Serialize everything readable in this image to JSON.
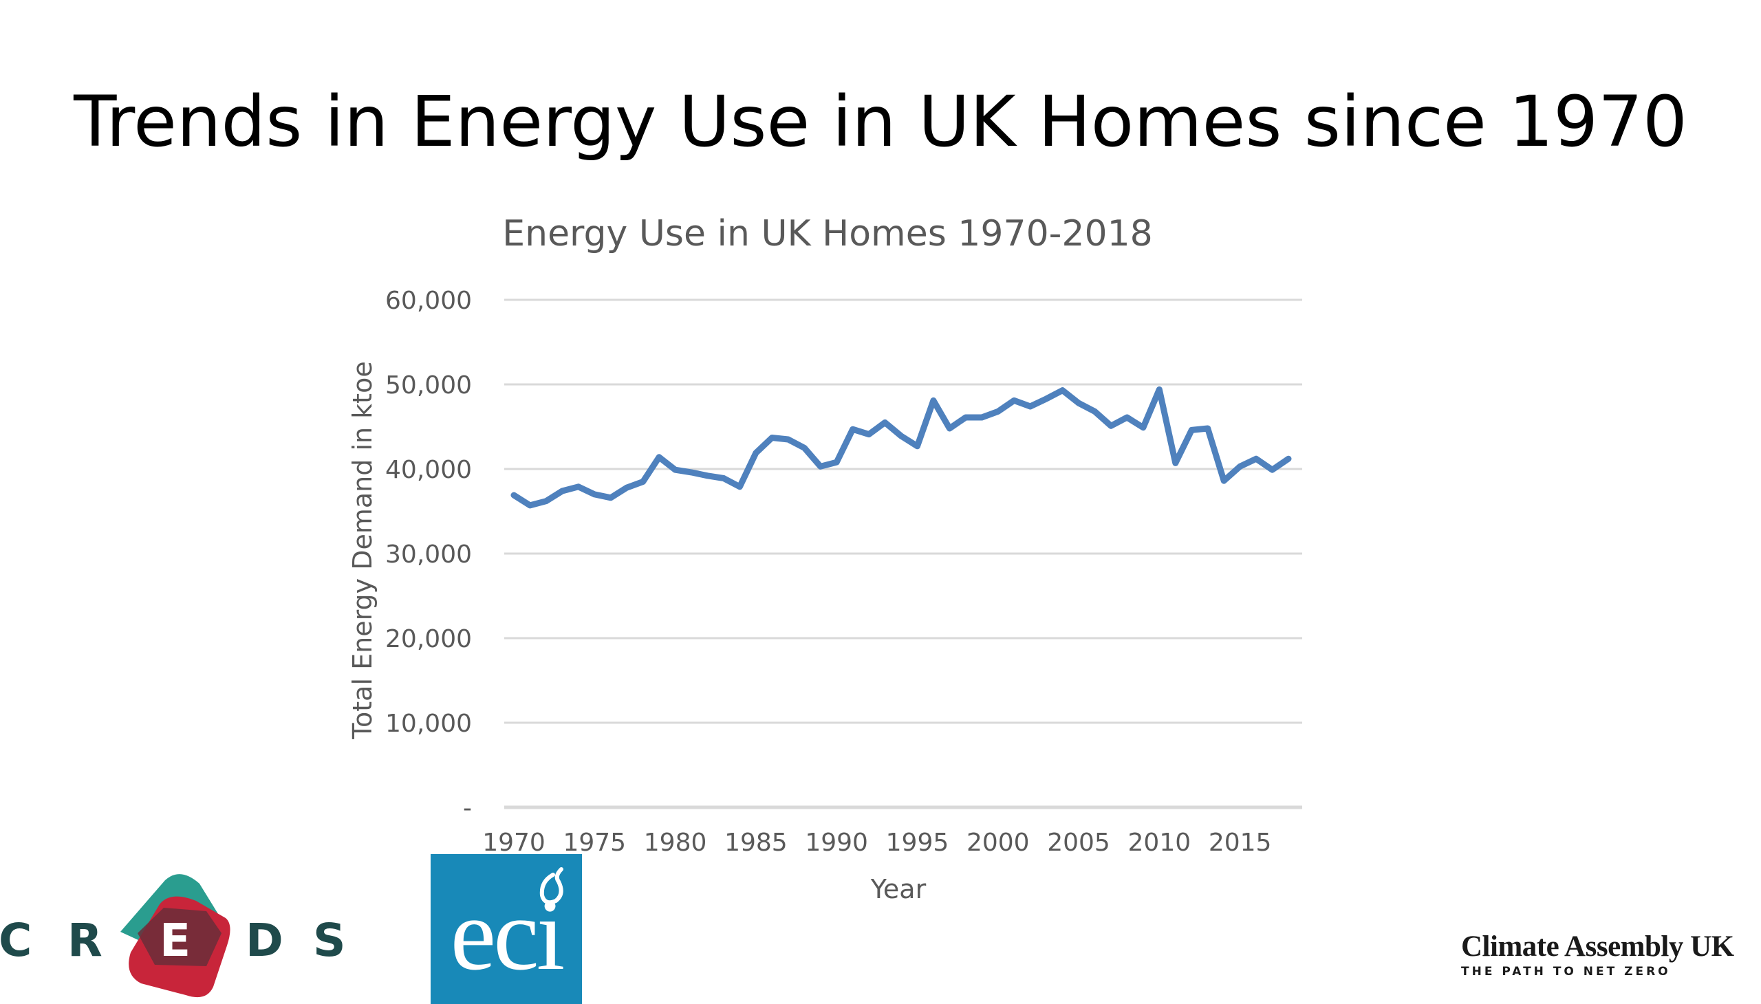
{
  "slide": {
    "title": "Trends in Energy Use in UK Homes since 1970"
  },
  "chart_data": {
    "type": "line",
    "title": "Energy Use in UK Homes 1970-2018",
    "xlabel": "Year",
    "ylabel": "Total Energy Demand in ktoe",
    "xlim": [
      1970,
      2018
    ],
    "ylim": [
      0,
      60000
    ],
    "xticks": [
      1970,
      1975,
      1980,
      1985,
      1990,
      1995,
      2000,
      2005,
      2010,
      2015
    ],
    "yticks": [
      0,
      10000,
      20000,
      30000,
      40000,
      50000,
      60000
    ],
    "ytick_labels": [
      "-",
      "10,000",
      "20,000",
      "30,000",
      "40,000",
      "50,000",
      "60,000"
    ],
    "grid": true,
    "line_color": "#4f81bd",
    "series": [
      {
        "x": [
          1970,
          1971,
          1972,
          1973,
          1974,
          1975,
          1976,
          1977,
          1978,
          1979,
          1980,
          1981,
          1982,
          1983,
          1984,
          1985,
          1986,
          1987,
          1988,
          1989,
          1990,
          1991,
          1992,
          1993,
          1994,
          1995,
          1996,
          1997,
          1998,
          1999,
          2000,
          2001,
          2002,
          2003,
          2004,
          2005,
          2006,
          2007,
          2008,
          2009,
          2010,
          2011,
          2012,
          2013,
          2014,
          2015,
          2016,
          2017,
          2018
        ],
        "values": [
          36900,
          35700,
          36200,
          37400,
          37900,
          37000,
          36600,
          37800,
          38500,
          41400,
          39900,
          39600,
          39200,
          38900,
          37900,
          41900,
          43700,
          43500,
          42500,
          40300,
          40800,
          44700,
          44100,
          45500,
          43900,
          42700,
          48100,
          44800,
          46100,
          46100,
          46800,
          48100,
          47400,
          48300,
          49300,
          47800,
          46800,
          45100,
          46100,
          44900,
          49400,
          40700,
          44600,
          44800,
          38600,
          40300,
          41200,
          39900,
          41200
        ]
      }
    ]
  },
  "logos": {
    "creds": {
      "letters": [
        "C",
        "R",
        "E",
        "D",
        "S"
      ],
      "colors": {
        "text": "#1f4a4b",
        "teal": "#2a9d8f",
        "red": "#c8253a",
        "center": "#6a2e3a"
      }
    },
    "eci": {
      "text": "eci",
      "color": "#1889b8"
    },
    "climate_assembly": {
      "name": "Climate Assembly UK",
      "tagline": "THE PATH TO NET ZERO"
    }
  }
}
